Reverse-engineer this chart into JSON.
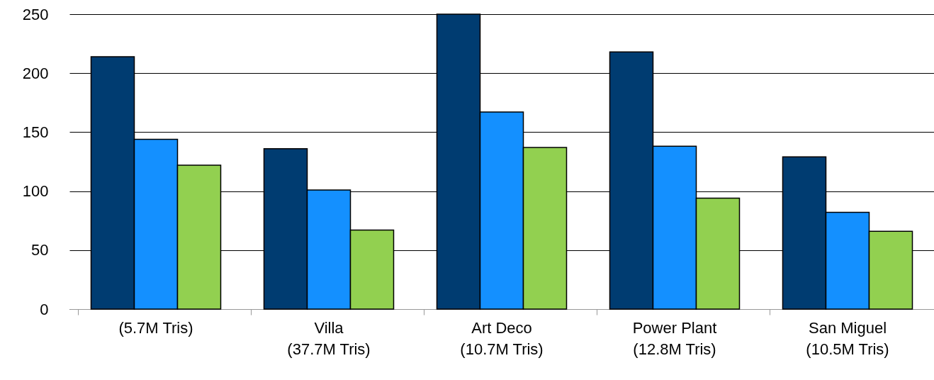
{
  "chart_data": {
    "type": "bar",
    "categories": [
      "(5.7M Tris)",
      "Villa\n(37.7M Tris)",
      "Art Deco\n(10.7M Tris)",
      "Power Plant\n(12.8M Tris)",
      "San Miguel\n(10.5M Tris)"
    ],
    "series": [
      {
        "color": "#003c71",
        "values": [
          214,
          136,
          250,
          218,
          129
        ]
      },
      {
        "color": "#1490ff",
        "values": [
          144,
          101,
          167,
          138,
          82
        ]
      },
      {
        "color": "#92d050",
        "values": [
          122,
          67,
          137,
          94,
          66
        ]
      }
    ],
    "ylim": [
      0,
      250
    ],
    "yticks": [
      0,
      50,
      100,
      150,
      200,
      250
    ],
    "grid": "y"
  }
}
